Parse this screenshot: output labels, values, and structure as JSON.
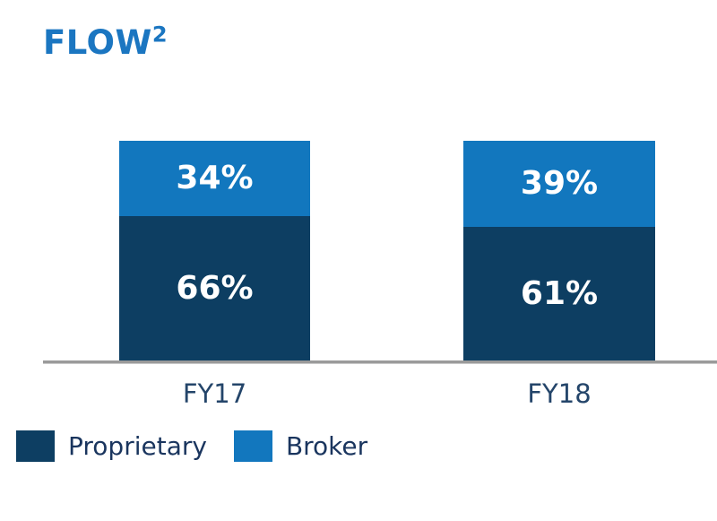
{
  "page": {
    "background_color": "#FFFFFF"
  },
  "header": {
    "title": "FLOW",
    "title_superscript": "2",
    "title_color": "#1B76C1"
  },
  "chart_data": {
    "type": "bar",
    "subtype": "stacked-100-percent",
    "title": "FLOW²",
    "categories": [
      "FY17",
      "FY18"
    ],
    "series": [
      {
        "name": "Proprietary",
        "color": "#0D3E62",
        "values": [
          66,
          61
        ],
        "labels": [
          "66%",
          "61%"
        ]
      },
      {
        "name": "Broker",
        "color": "#1277BE",
        "values": [
          34,
          39
        ],
        "labels": [
          "34%",
          "39%"
        ]
      }
    ],
    "unit": "%",
    "ylim": [
      0,
      100
    ],
    "grid": false,
    "legend_position": "bottom-left",
    "value_label_color": "#FFFFFF",
    "axis_line_color": "#9A9A9A",
    "category_label_color": "#24456A",
    "legend_text_color": "#1A355E"
  }
}
